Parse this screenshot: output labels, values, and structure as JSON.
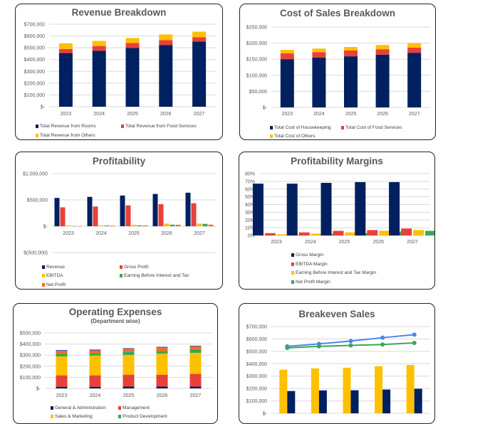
{
  "colors": {
    "navy": "#002060",
    "red": "#E8413A",
    "yellow": "#FFC000",
    "green": "#3AA655",
    "orange": "#FF6A1A",
    "blue": "#4A86E8",
    "blue2": "#1F4FD0"
  },
  "chart_data": [
    {
      "id": "revenue",
      "type": "bar",
      "stacked": true,
      "title": "Revenue Breakdown",
      "categories": [
        "2023",
        "2024",
        "2025",
        "2026",
        "2027"
      ],
      "ylim": [
        0,
        700000
      ],
      "yticks": [
        "$-",
        "$100,000",
        "$200,000",
        "$300,000",
        "$400,000",
        "$500,000",
        "$600,000",
        "$700,000"
      ],
      "grid": true,
      "legend": "bottom",
      "series": [
        {
          "name": "Total Revenue from Rooms",
          "color": "navy",
          "values": [
            455000,
            475000,
            498000,
            522000,
            553000
          ]
        },
        {
          "name": "Total Revenue from Food Services",
          "color": "red",
          "values": [
            35000,
            40000,
            43000,
            43000,
            37000
          ]
        },
        {
          "name": "Total Revenue from Others",
          "color": "yellow",
          "values": [
            48000,
            43000,
            42000,
            48000,
            47000
          ]
        }
      ]
    },
    {
      "id": "cost",
      "type": "bar",
      "stacked": true,
      "title": "Cost of Sales Breakdown",
      "categories": [
        "2023",
        "2024",
        "2025",
        "2026",
        "2027"
      ],
      "ylim": [
        0,
        250000
      ],
      "yticks": [
        "$-",
        "$50,000",
        "$100,000",
        "$150,000",
        "$200,000",
        "$250,000"
      ],
      "grid": true,
      "legend": "bottom",
      "series": [
        {
          "name": "Total Cost of Housekeeping",
          "color": "navy",
          "values": [
            150000,
            155000,
            159000,
            164000,
            170000
          ]
        },
        {
          "name": "Total Cost of Food Services",
          "color": "red",
          "values": [
            18000,
            17000,
            18000,
            17000,
            16000
          ]
        },
        {
          "name": "Total Cost of Others",
          "color": "yellow",
          "values": [
            11000,
            11000,
            11000,
            13000,
            14000
          ]
        }
      ]
    },
    {
      "id": "profitability",
      "type": "bar",
      "stacked": false,
      "title": "Profitability",
      "categories": [
        "2023",
        "2024",
        "2025",
        "2026",
        "2027"
      ],
      "ylim": [
        -500000,
        1000000
      ],
      "yticks": [
        "$(500,000)",
        "$-",
        "$500,000",
        "$1,000,000"
      ],
      "grid": true,
      "legend": "bottom",
      "series": [
        {
          "name": "Revenue",
          "color": "navy",
          "values": [
            538000,
            558000,
            583000,
            613000,
            637000
          ]
        },
        {
          "name": "Gross Profit",
          "color": "red",
          "values": [
            359000,
            375000,
            396000,
            419000,
            437000
          ]
        },
        {
          "name": "EBITDA",
          "color": "yellow",
          "values": [
            15000,
            15000,
            28000,
            50000,
            50000
          ]
        },
        {
          "name": "Earning Before Interest and Tax",
          "color": "green",
          "values": [
            3000,
            13000,
            17000,
            30000,
            45000
          ]
        },
        {
          "name": "Net Profit",
          "color": "orange",
          "values": [
            2000,
            10000,
            15000,
            28000,
            30000
          ]
        }
      ]
    },
    {
      "id": "margins",
      "type": "bar",
      "stacked": false,
      "title": "Profitability Margins",
      "categories": [
        "2023",
        "2024",
        "2025",
        "2026",
        "2027"
      ],
      "ylim": [
        0,
        80
      ],
      "yticks": [
        "0%",
        "10%",
        "20%",
        "30%",
        "40%",
        "50%",
        "60%",
        "70%",
        "80%"
      ],
      "grid": true,
      "legend": "bottom",
      "series": [
        {
          "name": "Gross Margin",
          "color": "navy",
          "values": [
            67,
            67,
            68,
            69,
            69
          ]
        },
        {
          "name": "EBITDA Margin",
          "color": "red",
          "values": [
            3,
            4,
            6,
            7,
            9
          ]
        },
        {
          "name": "Earning Before Interest and Tax Margin",
          "color": "yellow",
          "values": [
            1.5,
            2.5,
            4,
            6,
            7
          ]
        },
        {
          "name": "Net Profit Margin",
          "color": "green",
          "values": [
            0.5,
            2,
            3,
            5,
            6
          ]
        }
      ]
    },
    {
      "id": "opex",
      "type": "bar",
      "stacked": true,
      "title": "Operating Expenses",
      "subtitle": "(Department wise)",
      "categories": [
        "2023",
        "2024",
        "2025",
        "2026",
        "2027"
      ],
      "ylim": [
        0,
        500000
      ],
      "yticks": [
        "$-",
        "$100,000",
        "$200,000",
        "$300,000",
        "$400,000",
        "$500,000"
      ],
      "grid": true,
      "legend": "bottom",
      "series": [
        {
          "name": "General & Administration",
          "color": "navy",
          "values": [
            15000,
            15000,
            16000,
            16000,
            16000
          ]
        },
        {
          "name": "Management",
          "color": "red",
          "values": [
            103000,
            103000,
            108000,
            108000,
            115000
          ]
        },
        {
          "name": "Sales & Marketing",
          "color": "yellow",
          "values": [
            170000,
            178000,
            178000,
            190000,
            190000
          ]
        },
        {
          "name": "Product Development",
          "color": "green",
          "values": [
            27000,
            22000,
            30000,
            25000,
            33000
          ]
        },
        {
          "color": "orange",
          "values": [
            25000,
            25000,
            25000,
            30000,
            25000
          ]
        },
        {
          "color": "blue2",
          "values": [
            6000,
            7000,
            6000,
            6000,
            6000
          ]
        }
      ]
    },
    {
      "id": "breakeven",
      "type": "bar+line",
      "stacked": false,
      "title": "Breakeven Sales",
      "categories": [
        "2023",
        "2024",
        "2025",
        "2026",
        "2027"
      ],
      "ylim": [
        0,
        700000
      ],
      "yticks": [
        "$-",
        "$100,000",
        "$200,000",
        "$300,000",
        "$400,000",
        "$500,000",
        "$600,000",
        "$700,000"
      ],
      "grid": true,
      "series": [
        {
          "color": "yellow",
          "kind": "bar",
          "values": [
            352000,
            362000,
            368000,
            380000,
            390000
          ]
        },
        {
          "color": "navy",
          "kind": "bar",
          "values": [
            180000,
            185000,
            186000,
            192000,
            198000
          ]
        },
        {
          "color": "blue",
          "kind": "line",
          "values": [
            540000,
            560000,
            583000,
            610000,
            635000
          ]
        },
        {
          "color": "green",
          "kind": "line",
          "values": [
            528000,
            540000,
            548000,
            555000,
            568000
          ]
        }
      ]
    }
  ]
}
